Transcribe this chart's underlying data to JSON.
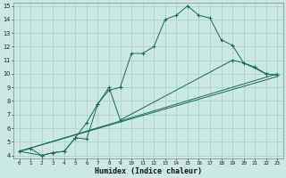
{
  "xlabel": "Humidex (Indice chaleur)",
  "bg_color": "#cce8e4",
  "grid_color": "#a8d4ce",
  "line_color": "#1a6b5a",
  "xlim": [
    -0.5,
    23.5
  ],
  "ylim": [
    3.8,
    15.2
  ],
  "xticks": [
    0,
    1,
    2,
    3,
    4,
    5,
    6,
    7,
    8,
    9,
    10,
    11,
    12,
    13,
    14,
    15,
    16,
    17,
    18,
    19,
    20,
    21,
    22,
    23
  ],
  "yticks": [
    4,
    5,
    6,
    7,
    8,
    9,
    10,
    11,
    12,
    13,
    14,
    15
  ],
  "series": [
    {
      "x": [
        0,
        1,
        2,
        3,
        4,
        5,
        6,
        7,
        8,
        9,
        10,
        11,
        12,
        13,
        14,
        15,
        16,
        17,
        18,
        19,
        20,
        21,
        22,
        23
      ],
      "y": [
        4.3,
        4.5,
        4.0,
        4.2,
        4.3,
        5.3,
        6.4,
        7.8,
        8.8,
        9.0,
        11.5,
        11.5,
        12.0,
        14.0,
        14.3,
        15.0,
        14.3,
        14.1,
        12.5,
        12.1,
        10.8,
        10.5,
        10.0,
        9.9
      ],
      "marker": true
    },
    {
      "x": [
        0,
        23
      ],
      "y": [
        4.3,
        10.0
      ],
      "marker": false
    },
    {
      "x": [
        0,
        23
      ],
      "y": [
        4.3,
        9.8
      ],
      "marker": false
    },
    {
      "x": [
        0,
        2,
        3,
        4,
        5,
        6,
        7,
        8,
        9,
        19,
        20,
        22,
        23
      ],
      "y": [
        4.3,
        4.0,
        4.2,
        4.3,
        5.3,
        5.2,
        7.8,
        9.0,
        6.6,
        11.0,
        10.8,
        10.0,
        9.9
      ],
      "marker": true
    }
  ]
}
